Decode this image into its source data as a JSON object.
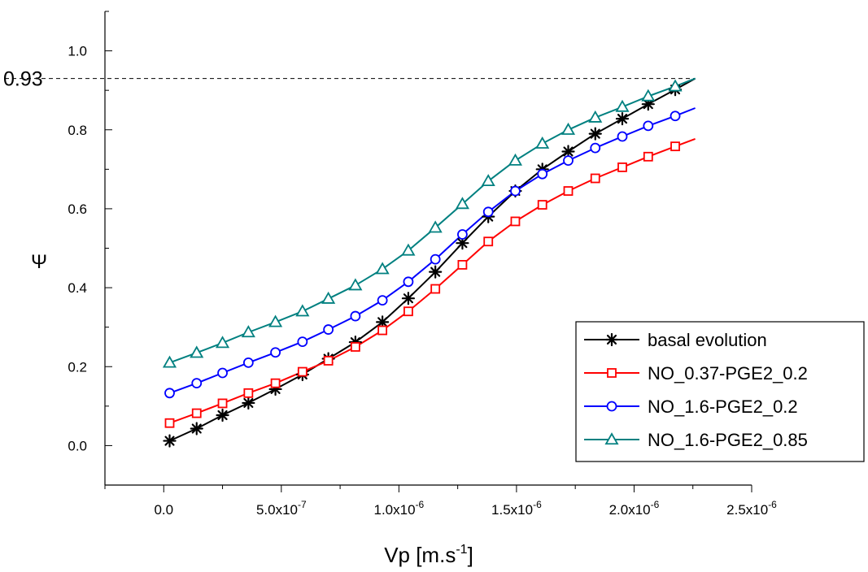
{
  "chart_data": {
    "type": "line",
    "xlabel_main": "Vp [m.s",
    "xlabel_sup": "-1",
    "xlabel_end": "]",
    "ylabel": "Ψ",
    "xlim": [
      -2.5e-07,
      2.5e-06
    ],
    "ylim": [
      -0.1,
      1.1
    ],
    "x_ticks": [
      0,
      5e-07,
      1e-06,
      1.5e-06,
      2e-06,
      2.5e-06
    ],
    "x_tick_labels": [
      {
        "text": "0.0"
      },
      {
        "mant": "5.0x10",
        "exp": "-7"
      },
      {
        "mant": "1.0x10",
        "exp": "-6"
      },
      {
        "mant": "1.5x10",
        "exp": "-6"
      },
      {
        "mant": "2.0x10",
        "exp": "-6"
      },
      {
        "mant": "2.5x10",
        "exp": "-6"
      }
    ],
    "y_ticks": [
      0.0,
      0.2,
      0.4,
      0.6,
      0.8,
      1.0
    ],
    "y_tick_labels": [
      "0.0",
      "0.2",
      "0.4",
      "0.6",
      "0.8",
      "1.0"
    ],
    "reference_line": {
      "y": 0.93,
      "label": "0.93"
    },
    "legend_position": "bottom-right",
    "x": [
      2.5e-08,
      1.4e-07,
      2.5e-07,
      3.6e-07,
      4.75e-07,
      5.9e-07,
      7e-07,
      8.15e-07,
      9.3e-07,
      1.04e-06,
      1.155e-06,
      1.27e-06,
      1.38e-06,
      1.495e-06,
      1.61e-06,
      1.72e-06,
      1.835e-06,
      1.95e-06,
      2.06e-06,
      2.175e-06
    ],
    "x_end": 2.26e-06,
    "series": [
      {
        "name": "basal evolution",
        "color": "#000000",
        "marker": "asterisk",
        "values": [
          0.012,
          0.043,
          0.077,
          0.108,
          0.143,
          0.18,
          0.22,
          0.262,
          0.313,
          0.373,
          0.44,
          0.513,
          0.58,
          0.645,
          0.7,
          0.745,
          0.79,
          0.828,
          0.865,
          0.902
        ],
        "end_value": 0.93
      },
      {
        "name": "NO_0.37-PGE2_0.2",
        "color": "#ff0000",
        "marker": "square",
        "values": [
          0.057,
          0.082,
          0.107,
          0.133,
          0.158,
          0.187,
          0.215,
          0.25,
          0.292,
          0.34,
          0.397,
          0.458,
          0.517,
          0.568,
          0.61,
          0.645,
          0.677,
          0.705,
          0.732,
          0.758
        ],
        "end_value": 0.777
      },
      {
        "name": "NO_1.6-PGE2_0.2",
        "color": "#0000ff",
        "marker": "circle",
        "values": [
          0.133,
          0.158,
          0.184,
          0.21,
          0.236,
          0.263,
          0.294,
          0.328,
          0.368,
          0.415,
          0.472,
          0.535,
          0.592,
          0.645,
          0.688,
          0.722,
          0.754,
          0.783,
          0.81,
          0.835
        ],
        "end_value": 0.855
      },
      {
        "name": "NO_1.6-PGE2_0.85",
        "color": "#008080",
        "marker": "triangle",
        "values": [
          0.21,
          0.235,
          0.26,
          0.287,
          0.313,
          0.34,
          0.372,
          0.406,
          0.447,
          0.494,
          0.552,
          0.612,
          0.67,
          0.722,
          0.765,
          0.8,
          0.831,
          0.858,
          0.885,
          0.91
        ],
        "end_value": 0.93
      }
    ]
  }
}
